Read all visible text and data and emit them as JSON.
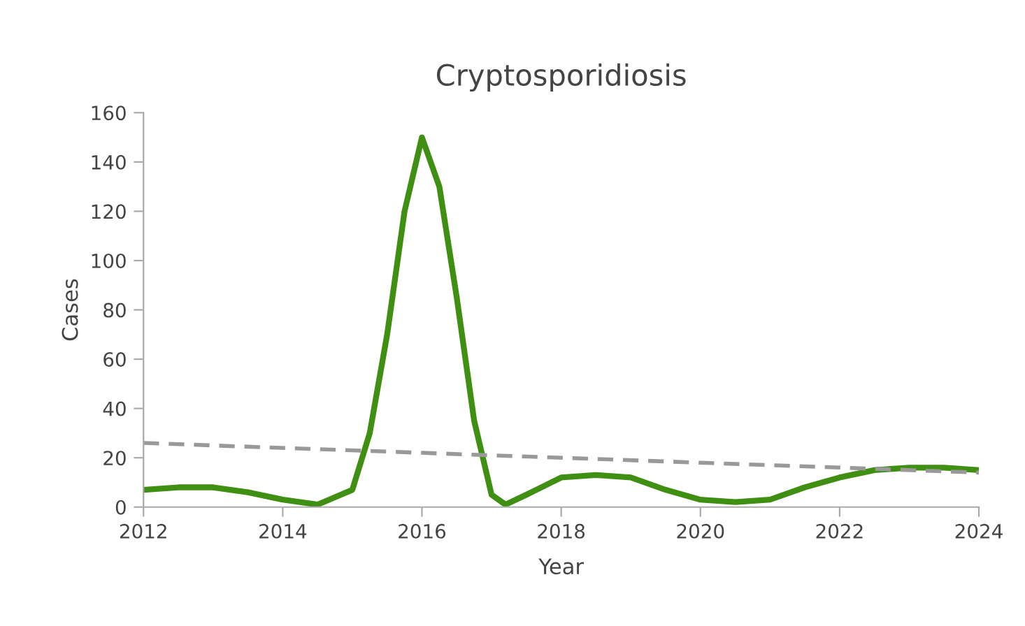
{
  "chart_data": {
    "type": "line",
    "title": "Cryptosporidiosis",
    "xlabel": "Year",
    "ylabel": "Cases",
    "xlim": [
      2012,
      2024
    ],
    "xticks": [
      2012,
      2014,
      2016,
      2018,
      2020,
      2022,
      2024
    ],
    "ylim": [
      0,
      160
    ],
    "yticks": [
      0,
      20,
      40,
      60,
      80,
      100,
      120,
      140,
      160
    ],
    "grid": false,
    "marker": "none",
    "series": [
      {
        "color": "#3f8f12",
        "line_style": "solid",
        "x": [
          2012,
          2012.5,
          2013,
          2013.5,
          2014,
          2014.5,
          2015,
          2015.25,
          2015.5,
          2015.75,
          2016,
          2016.25,
          2016.5,
          2016.75,
          2017,
          2017.2,
          2017.5,
          2018,
          2018.5,
          2019,
          2019.5,
          2020,
          2020.5,
          2021,
          2021.5,
          2022,
          2022.5,
          2023,
          2023.5,
          2024
        ],
        "values": [
          7,
          8,
          8,
          6,
          3,
          1,
          7,
          30,
          70,
          120,
          150,
          130,
          85,
          35,
          5,
          1,
          5,
          12,
          13,
          12,
          7,
          3,
          2,
          3,
          8,
          12,
          15,
          16,
          16,
          15
        ]
      },
      {
        "color": "#999999",
        "line_style": "dashed",
        "x": [
          2012,
          2024
        ],
        "values": [
          26,
          14
        ]
      }
    ]
  }
}
